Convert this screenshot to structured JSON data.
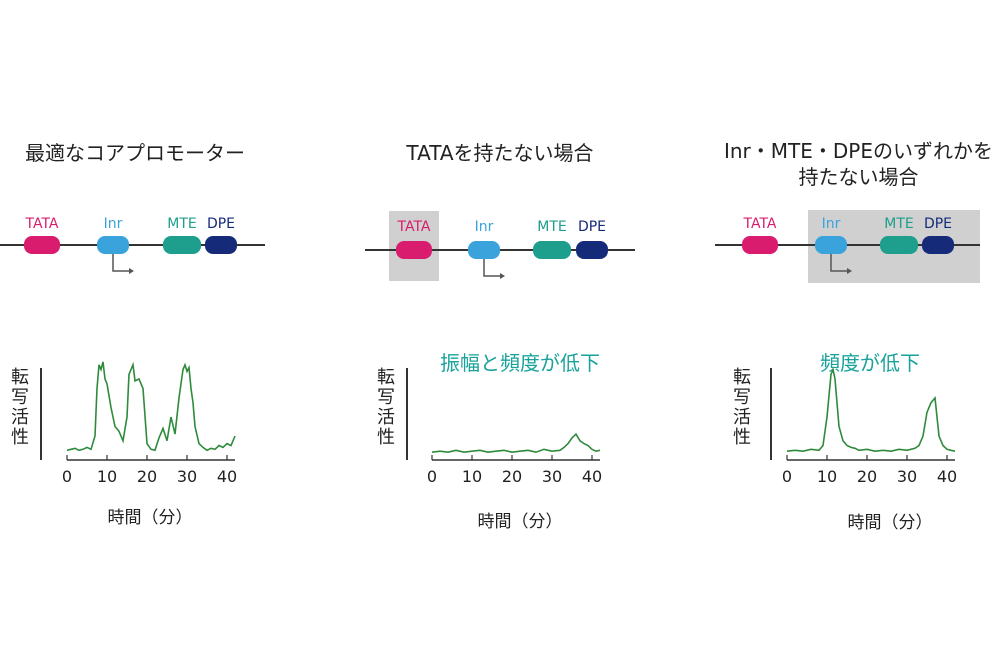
{
  "colors": {
    "tata": "#d91c6e",
    "inr": "#3aa3db",
    "mte": "#1e9e8c",
    "dpe": "#162a7a",
    "highlight_box": "#d0d0d0",
    "trace": "#2e8b3c",
    "caption": "#1aa39a"
  },
  "elements": {
    "tata": "TATA",
    "inr": "Inr",
    "mte": "MTE",
    "dpe": "DPE"
  },
  "axis": {
    "ylabel_chars": [
      "転",
      "写",
      "活",
      "性"
    ],
    "xlabel": "時間（分）",
    "xticks": [
      "0",
      "10",
      "20",
      "30",
      "40"
    ]
  },
  "panels": [
    {
      "title_lines": [
        "最適なコアプロモーター"
      ],
      "caption": "",
      "tata_highlighted": false,
      "downstream_highlighted": false
    },
    {
      "title_lines": [
        "TATAを持たない場合"
      ],
      "caption": "振幅と頻度が低下",
      "tata_highlighted": true,
      "downstream_highlighted": false
    },
    {
      "title_lines": [
        "Inr・MTE・DPEのいずれかを",
        "持たない場合"
      ],
      "caption": "頻度が低下",
      "tata_highlighted": false,
      "downstream_highlighted": true
    }
  ],
  "chart_data": [
    {
      "type": "line",
      "xlabel": "時間（分）",
      "ylabel": "転写活性",
      "xlim": [
        0,
        42
      ],
      "ylim": [
        0,
        1
      ],
      "series": [
        {
          "x": [
            0,
            1,
            2,
            3,
            4,
            5,
            6,
            7,
            7.5,
            8,
            8.5,
            9,
            9.5,
            10,
            11,
            12,
            13,
            14,
            15,
            15.5,
            16,
            16.5,
            17,
            18,
            19,
            20,
            21,
            22,
            23,
            24,
            25,
            26,
            27,
            28,
            29,
            29.5,
            30,
            30.5,
            31,
            31.5,
            32,
            33,
            34,
            35,
            36,
            37,
            38,
            39,
            40,
            41,
            42
          ],
          "y": [
            0.05,
            0.06,
            0.07,
            0.05,
            0.06,
            0.08,
            0.06,
            0.2,
            0.7,
            0.95,
            0.9,
            0.98,
            0.8,
            0.75,
            0.5,
            0.3,
            0.25,
            0.15,
            0.4,
            0.85,
            0.9,
            0.95,
            0.78,
            0.8,
            0.7,
            0.12,
            0.06,
            0.05,
            0.18,
            0.28,
            0.15,
            0.4,
            0.22,
            0.6,
            0.9,
            0.95,
            0.88,
            0.92,
            0.7,
            0.55,
            0.3,
            0.12,
            0.08,
            0.05,
            0.07,
            0.06,
            0.1,
            0.08,
            0.12,
            0.1,
            0.2
          ]
        }
      ]
    },
    {
      "type": "line",
      "xlabel": "時間（分）",
      "ylabel": "転写活性",
      "xlim": [
        0,
        42
      ],
      "ylim": [
        0,
        1
      ],
      "series": [
        {
          "x": [
            0,
            2,
            4,
            6,
            8,
            10,
            12,
            14,
            16,
            18,
            20,
            22,
            24,
            26,
            28,
            30,
            32,
            33,
            34,
            35,
            36,
            37,
            38,
            39,
            40,
            41,
            42
          ],
          "y": [
            0.03,
            0.04,
            0.03,
            0.05,
            0.03,
            0.04,
            0.05,
            0.03,
            0.04,
            0.05,
            0.03,
            0.04,
            0.05,
            0.03,
            0.06,
            0.04,
            0.05,
            0.08,
            0.12,
            0.18,
            0.22,
            0.15,
            0.12,
            0.1,
            0.06,
            0.04,
            0.05
          ]
        }
      ]
    },
    {
      "type": "line",
      "xlabel": "時間（分）",
      "ylabel": "転写活性",
      "xlim": [
        0,
        42
      ],
      "ylim": [
        0,
        1
      ],
      "series": [
        {
          "x": [
            0,
            2,
            4,
            6,
            8,
            9,
            10,
            11,
            11.5,
            12,
            12.5,
            13,
            14,
            15,
            16,
            17,
            18,
            20,
            22,
            24,
            26,
            28,
            30,
            32,
            33,
            34,
            35,
            36,
            37,
            37.5,
            38,
            39,
            40,
            41,
            42
          ],
          "y": [
            0.04,
            0.05,
            0.04,
            0.06,
            0.05,
            0.1,
            0.4,
            0.85,
            0.9,
            0.8,
            0.55,
            0.3,
            0.15,
            0.1,
            0.08,
            0.07,
            0.05,
            0.06,
            0.04,
            0.05,
            0.04,
            0.06,
            0.05,
            0.07,
            0.1,
            0.2,
            0.45,
            0.55,
            0.6,
            0.4,
            0.2,
            0.1,
            0.06,
            0.05,
            0.04
          ]
        }
      ]
    }
  ]
}
